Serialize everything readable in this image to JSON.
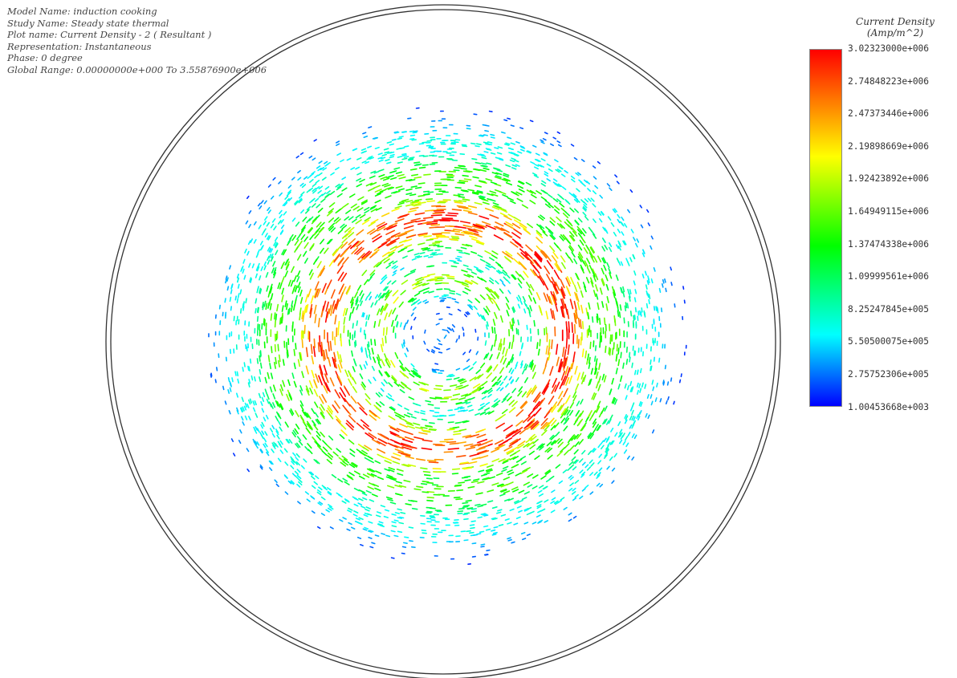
{
  "header": {
    "lines": [
      "Model Name: induction cooking",
      "Study Name: Steady state thermal",
      "Plot name: Current Density - 2 ( Resultant )",
      "Representation: Instantaneous",
      "Phase: 0 degree",
      "Global Range: 0.00000000e+000 To 3.55876900e+006"
    ]
  },
  "colors": {
    "scale": [
      "#0000ff",
      "#00ffff",
      "#00ff00",
      "#ffff00",
      "#ff0000"
    ]
  },
  "chart_data": {
    "type": "vector_field",
    "legend": {
      "title": "Current Density",
      "unit": "(Amp/m^2)",
      "labels": [
        "3.02323000e+006",
        "2.74848223e+006",
        "2.47373446e+006",
        "2.19898669e+006",
        "1.92423892e+006",
        "1.64949115e+006",
        "1.37474338e+006",
        "1.09999561e+006",
        "8.25247845e+005",
        "5.50500075e+005",
        "2.75752306e+005",
        "1.00453668e+003"
      ],
      "max": 3023230,
      "min": 1004.53668
    },
    "field": {
      "pattern": "circular-swirl",
      "peak_value": 3023230,
      "peak_ring_fraction": 0.39,
      "inner_ring_value": 1900000,
      "center_value": 400000,
      "outer_edge_value": 300000
    }
  }
}
